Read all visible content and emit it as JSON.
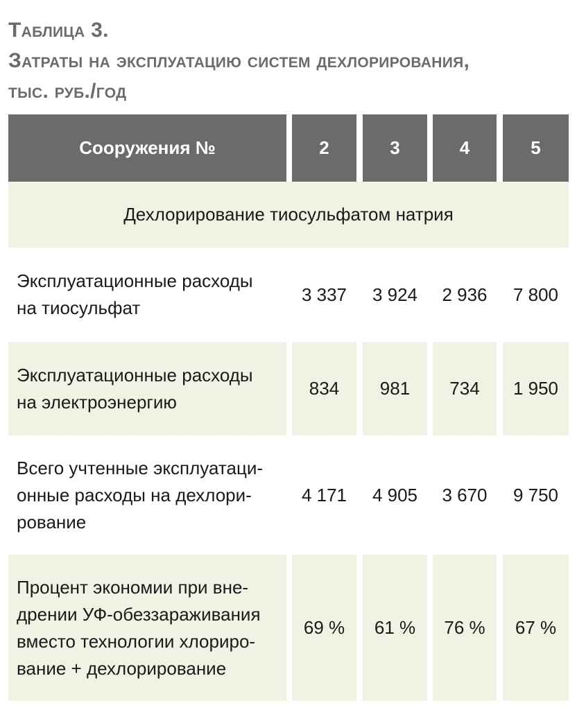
{
  "title": "Таблица 3.\nЗатраты на эксплуатацию систем дехлорирования,\nтыс. руб./год",
  "header": {
    "label": "Сооружения №",
    "columns": [
      "2",
      "3",
      "4",
      "5"
    ]
  },
  "section": "Дехлорирование тиосульфатом натрия",
  "rows": [
    {
      "label": "Эксплуатационные расходы\nна тиосульфат",
      "values": [
        "3 337",
        "3 924",
        "2 936",
        "7 800"
      ]
    },
    {
      "label": "Эксплуатационные расходы\nна электроэнергию",
      "values": [
        "834",
        "981",
        "734",
        "1 950"
      ]
    },
    {
      "label": "Всего учтенные эксплуатаци-\nонные расходы на дехлори-\nрование",
      "values": [
        "4 171",
        "4 905",
        "3 670",
        "9 750"
      ]
    },
    {
      "label": "Процент экономии при вне-\nдрении УФ-обеззараживания\nвместо технологии хлориро-\nвание + дехлорирование",
      "values": [
        "69 %",
        "61 %",
        "76 %",
        "67 %"
      ]
    }
  ],
  "colors": {
    "header_bg": "#6b6b6b",
    "row_bg": "#eef3e4",
    "title": "#6b6b6b"
  }
}
